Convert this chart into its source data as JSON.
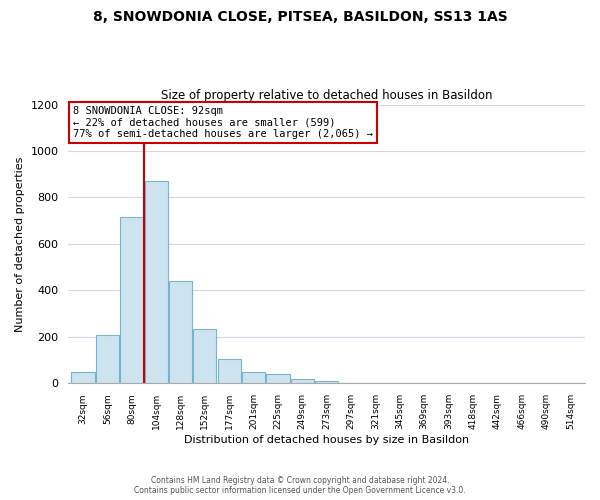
{
  "title": "8, SNOWDONIA CLOSE, PITSEA, BASILDON, SS13 1AS",
  "subtitle": "Size of property relative to detached houses in Basildon",
  "xlabel": "Distribution of detached houses by size in Basildon",
  "ylabel": "Number of detached properties",
  "bar_labels": [
    "32sqm",
    "56sqm",
    "80sqm",
    "104sqm",
    "128sqm",
    "152sqm",
    "177sqm",
    "201sqm",
    "225sqm",
    "249sqm",
    "273sqm",
    "297sqm",
    "321sqm",
    "345sqm",
    "369sqm",
    "393sqm",
    "418sqm",
    "442sqm",
    "466sqm",
    "490sqm",
    "514sqm"
  ],
  "bar_heights": [
    50,
    210,
    715,
    870,
    440,
    235,
    105,
    50,
    40,
    20,
    10,
    0,
    0,
    0,
    0,
    0,
    0,
    0,
    0,
    0,
    0
  ],
  "bar_color": "#cde4f0",
  "bar_edge_color": "#7ab3cc",
  "vline_x": 2.5,
  "vline_color": "#cc0000",
  "annotation_title": "8 SNOWDONIA CLOSE: 92sqm",
  "annotation_line1": "← 22% of detached houses are smaller (599)",
  "annotation_line2": "77% of semi-detached houses are larger (2,065) →",
  "annotation_box_color": "#ffffff",
  "annotation_box_edge": "#cc0000",
  "ylim": [
    0,
    1200
  ],
  "yticks": [
    0,
    200,
    400,
    600,
    800,
    1000,
    1200
  ],
  "footer_line1": "Contains HM Land Registry data © Crown copyright and database right 2024.",
  "footer_line2": "Contains public sector information licensed under the Open Government Licence v3.0.",
  "bg_color": "#ffffff",
  "grid_color": "#d0d8e8"
}
